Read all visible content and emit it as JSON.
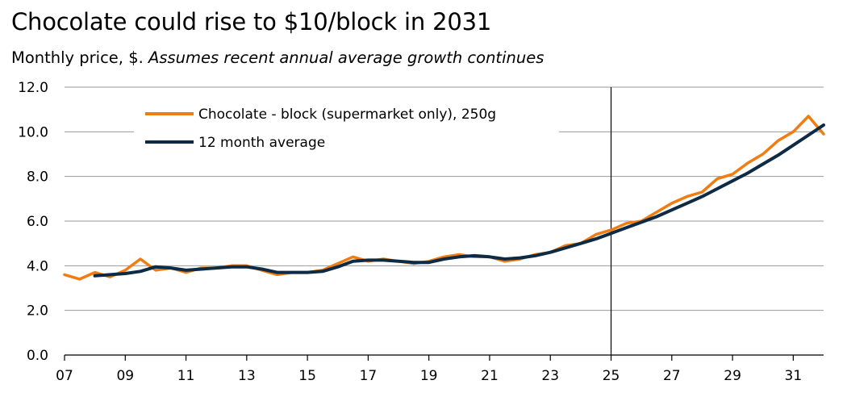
{
  "chart_data": {
    "type": "line",
    "title": "Chocolate could rise to $10/block in 2031",
    "subtitle": "Monthly price, $.",
    "subtitle_note": "Assumes recent annual average growth continues",
    "xlabel": "",
    "ylabel": "",
    "xlim": [
      2007,
      2032
    ],
    "ylim": [
      0,
      12
    ],
    "y_ticks": [
      "0.0",
      "2.0",
      "4.0",
      "6.0",
      "8.0",
      "10.0",
      "12.0"
    ],
    "x_ticks": [
      "07",
      "09",
      "11",
      "13",
      "15",
      "17",
      "19",
      "21",
      "23",
      "25",
      "27",
      "29",
      "31"
    ],
    "x_tick_years": [
      2007,
      2009,
      2011,
      2013,
      2015,
      2017,
      2019,
      2021,
      2023,
      2025,
      2027,
      2029,
      2031
    ],
    "grid": true,
    "vertical_marker_year": 2025,
    "legend_position": "top-left",
    "colors": {
      "chocolate": "#f07c12",
      "average": "#0d2b45",
      "grid": "#9a9a9a",
      "axis": "#000000"
    },
    "series": [
      {
        "name": "Chocolate - block (supermarket only), 250g",
        "color": "#f07c12",
        "x": [
          2007.0,
          2007.5,
          2008.0,
          2008.5,
          2009.0,
          2009.5,
          2010.0,
          2010.5,
          2011.0,
          2011.5,
          2012.0,
          2012.5,
          2013.0,
          2013.5,
          2014.0,
          2014.5,
          2015.0,
          2015.5,
          2016.0,
          2016.5,
          2017.0,
          2017.5,
          2018.0,
          2018.5,
          2019.0,
          2019.5,
          2020.0,
          2020.5,
          2021.0,
          2021.5,
          2022.0,
          2022.5,
          2023.0,
          2023.5,
          2024.0,
          2024.5,
          2025.0,
          2025.5,
          2026.0,
          2026.5,
          2027.0,
          2027.5,
          2028.0,
          2028.5,
          2029.0,
          2029.5,
          2030.0,
          2030.5,
          2031.0,
          2031.5,
          2032.0
        ],
        "values": [
          3.6,
          3.4,
          3.7,
          3.5,
          3.8,
          4.3,
          3.8,
          3.9,
          3.7,
          3.9,
          3.9,
          4.0,
          4.0,
          3.8,
          3.6,
          3.7,
          3.7,
          3.8,
          4.1,
          4.4,
          4.2,
          4.3,
          4.2,
          4.1,
          4.2,
          4.4,
          4.5,
          4.4,
          4.4,
          4.2,
          4.3,
          4.5,
          4.6,
          4.9,
          5.0,
          5.4,
          5.6,
          5.9,
          6.0,
          6.4,
          6.8,
          7.1,
          7.3,
          7.9,
          8.1,
          8.6,
          9.0,
          9.6,
          10.0,
          10.7,
          9.9
        ]
      },
      {
        "name": "12 month average",
        "color": "#0d2b45",
        "x": [
          2008.0,
          2008.5,
          2009.0,
          2009.5,
          2010.0,
          2010.5,
          2011.0,
          2011.5,
          2012.0,
          2012.5,
          2013.0,
          2013.5,
          2014.0,
          2014.5,
          2015.0,
          2015.5,
          2016.0,
          2016.5,
          2017.0,
          2017.5,
          2018.0,
          2018.5,
          2019.0,
          2019.5,
          2020.0,
          2020.5,
          2021.0,
          2021.5,
          2022.0,
          2022.5,
          2023.0,
          2023.5,
          2024.0,
          2024.5,
          2025.0,
          2025.5,
          2026.0,
          2026.5,
          2027.0,
          2027.5,
          2028.0,
          2028.5,
          2029.0,
          2029.5,
          2030.0,
          2030.5,
          2031.0,
          2031.5,
          2032.0
        ],
        "values": [
          3.55,
          3.6,
          3.65,
          3.75,
          3.95,
          3.9,
          3.8,
          3.85,
          3.9,
          3.95,
          3.95,
          3.85,
          3.7,
          3.7,
          3.7,
          3.75,
          3.95,
          4.2,
          4.25,
          4.25,
          4.2,
          4.15,
          4.15,
          4.3,
          4.4,
          4.45,
          4.4,
          4.3,
          4.35,
          4.45,
          4.6,
          4.8,
          5.0,
          5.2,
          5.45,
          5.7,
          5.95,
          6.2,
          6.5,
          6.8,
          7.1,
          7.45,
          7.8,
          8.15,
          8.55,
          8.95,
          9.4,
          9.85,
          10.3
        ]
      }
    ]
  }
}
